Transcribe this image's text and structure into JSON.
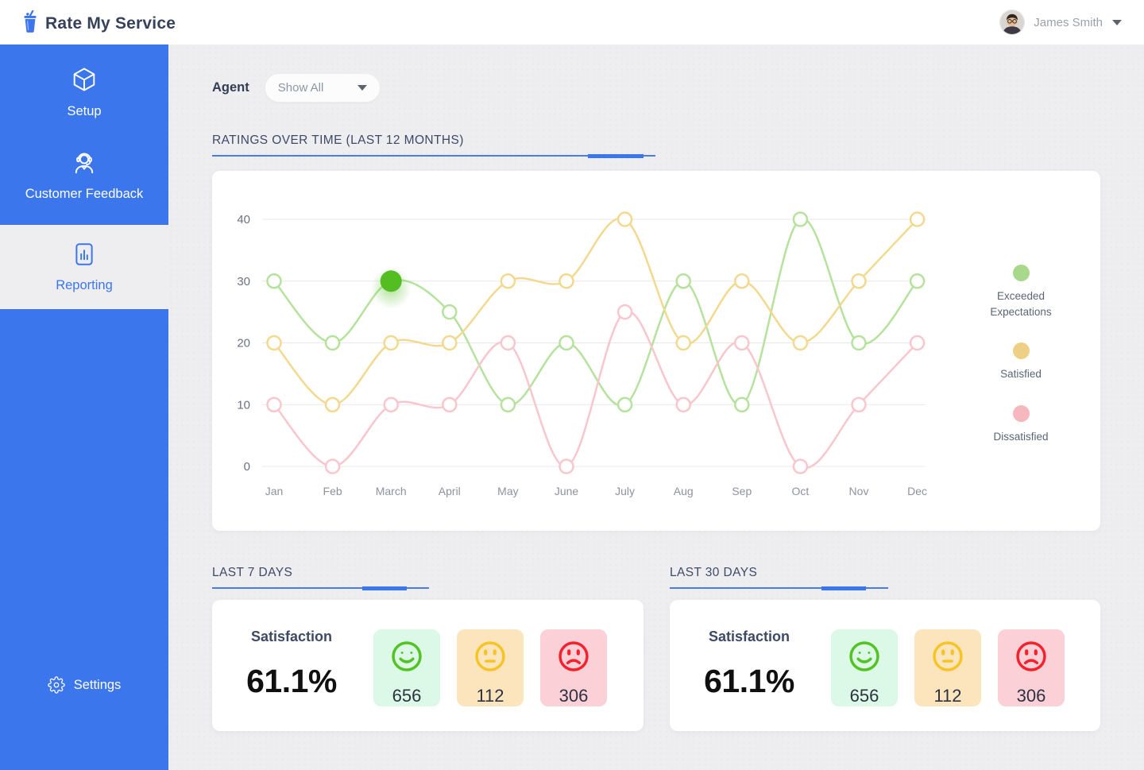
{
  "header": {
    "app_title": "Rate My Service",
    "user": {
      "name": "James Smith"
    }
  },
  "sidebar": {
    "items": [
      {
        "label": "Setup",
        "icon": "box-icon",
        "active": false
      },
      {
        "label": "Customer Feedback",
        "icon": "support-agent-icon",
        "active": false
      },
      {
        "label": "Reporting",
        "icon": "report-document-icon",
        "active": true
      },
      {
        "label": "Settings",
        "icon": "gear-icon",
        "active": false
      }
    ]
  },
  "filters": {
    "agent_label": "Agent",
    "agent_value": "Show All"
  },
  "sections": {
    "ratings_title": "RATINGS OVER TIME (LAST 12 MONTHS)"
  },
  "chart_data": {
    "type": "line",
    "title": "RATINGS OVER TIME (LAST 12 MONTHS)",
    "x": [
      "Jan",
      "Feb",
      "March",
      "April",
      "May",
      "June",
      "July",
      "Aug",
      "Sep",
      "Oct",
      "Nov",
      "Dec"
    ],
    "series": [
      {
        "name": "Exceeded Expectations",
        "line_color": "#b5e29c",
        "legend_color": "#a8d98b",
        "values": [
          30,
          20,
          30,
          25,
          10,
          20,
          10,
          30,
          10,
          40,
          20,
          30
        ]
      },
      {
        "name": "Satisfied",
        "line_color": "#f3d98f",
        "legend_color": "#edd083",
        "values": [
          20,
          10,
          20,
          20,
          30,
          30,
          40,
          20,
          30,
          20,
          30,
          40
        ]
      },
      {
        "name": "Dissatisfied",
        "line_color": "#f8c6cd",
        "legend_color": "#f6b7be",
        "values": [
          10,
          0,
          10,
          10,
          20,
          0,
          25,
          10,
          20,
          0,
          10,
          20
        ]
      }
    ],
    "yticks": [
      0,
      10,
      20,
      30,
      40
    ],
    "ylim": [
      0,
      40
    ],
    "grid": true,
    "legend_position": "right",
    "highlight_point": {
      "series": "Exceeded Expectations",
      "x": "March",
      "value": 30,
      "color": "#54bd22"
    }
  },
  "summary_cards": [
    {
      "title": "LAST 7 DAYS",
      "satisfaction_label": "Satisfaction",
      "satisfaction_value": "61.1%",
      "ratings": [
        {
          "sentiment": "happy",
          "icon": "happy-face-icon",
          "count": "656"
        },
        {
          "sentiment": "neutral",
          "icon": "neutral-face-icon",
          "count": "112"
        },
        {
          "sentiment": "sad",
          "icon": "sad-face-icon",
          "count": "306"
        }
      ]
    },
    {
      "title": "LAST 30 DAYS",
      "satisfaction_label": "Satisfaction",
      "satisfaction_value": "61.1%",
      "ratings": [
        {
          "sentiment": "happy",
          "icon": "happy-face-icon",
          "count": "656"
        },
        {
          "sentiment": "neutral",
          "icon": "neutral-face-icon",
          "count": "112"
        },
        {
          "sentiment": "sad",
          "icon": "sad-face-icon",
          "count": "306"
        }
      ]
    }
  ],
  "colors": {
    "sidebar_blue": "#3b76ec",
    "accent_blue": "#3b76ec",
    "happy_green": "#53c322",
    "neutral_yellow": "#f6c425",
    "sad_red": "#f5222d",
    "tile_green_bg": "#dcf8e7",
    "tile_yellow_bg": "#fce5bd",
    "tile_red_bg": "#fbd0d6",
    "highlight_dot_green": "#54bd22"
  }
}
